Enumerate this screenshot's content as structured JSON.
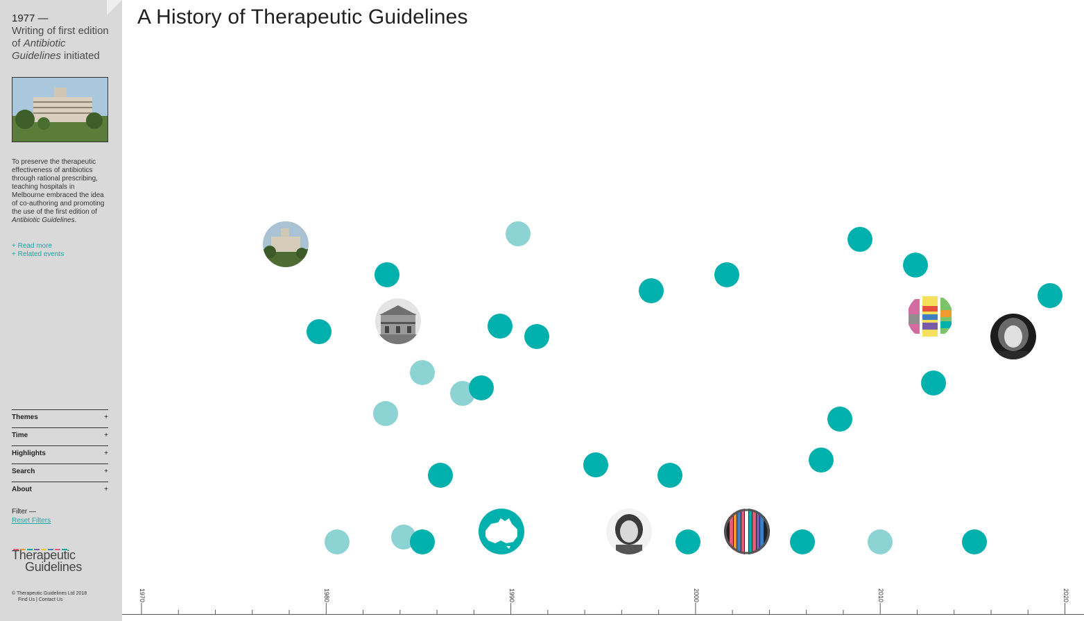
{
  "sidebar": {
    "event": {
      "year": "1977 —",
      "title_pre": "Writing of first edition of ",
      "title_em": "Antibiotic Guidelines",
      "title_post": " initiated",
      "description_pre": "To preserve the therapeutic effectiveness of antibiotics through rational prescribing, teaching hospitals in Melbourne embraced the idea of co-authoring and promoting the use of the first edition of ",
      "description_em": "Antibiotic Guidelines",
      "description_post": ".",
      "read_more": "+ Read more",
      "related_events": "+ Related events"
    },
    "menu": [
      {
        "label": "Themes",
        "icon": "+"
      },
      {
        "label": "Time",
        "icon": "+"
      },
      {
        "label": "Highlights",
        "icon": "+"
      },
      {
        "label": "Search",
        "icon": "+"
      },
      {
        "label": "About",
        "icon": "+"
      }
    ],
    "filter_label": "Filter —",
    "reset_filters": "Reset Filters",
    "logo": {
      "line1": "Therapeutic",
      "line2": "Guidelines"
    },
    "footer": {
      "copyright": "© Therapeutic Guidelines Ltd 2018",
      "links": "Find Us | Contact Us"
    }
  },
  "title": "A History of Therapeutic Guidelines",
  "timeline": {
    "axis_labels": [
      "1970",
      "1980",
      "1990",
      "2000",
      "2010",
      "2020"
    ],
    "colors": {
      "teal": "#00b0ad",
      "light": "#8dd3d3",
      "axis": "#555555"
    },
    "events": [
      {
        "year": 1979.6,
        "level": 0.53,
        "kind": "teal"
      },
      {
        "year": 1980.6,
        "level": 0.12,
        "kind": "light"
      },
      {
        "year": 1983.2,
        "level": 0.37,
        "kind": "light"
      },
      {
        "year": 1983.3,
        "level": 0.64,
        "kind": "teal"
      },
      {
        "year": 1984.2,
        "level": 0.13,
        "kind": "light"
      },
      {
        "year": 1985.2,
        "level": 0.45,
        "kind": "light"
      },
      {
        "year": 1985.2,
        "level": 0.12,
        "kind": "teal"
      },
      {
        "year": 1986.2,
        "level": 0.25,
        "kind": "teal"
      },
      {
        "year": 1987.4,
        "level": 0.41,
        "kind": "light"
      },
      {
        "year": 1988.4,
        "level": 0.42,
        "kind": "teal"
      },
      {
        "year": 1989.4,
        "level": 0.54,
        "kind": "teal"
      },
      {
        "year": 1990.4,
        "level": 0.72,
        "kind": "light"
      },
      {
        "year": 1991.4,
        "level": 0.52,
        "kind": "teal"
      },
      {
        "year": 1994.6,
        "level": 0.27,
        "kind": "teal"
      },
      {
        "year": 1997.6,
        "level": 0.61,
        "kind": "teal"
      },
      {
        "year": 1998.6,
        "level": 0.25,
        "kind": "teal"
      },
      {
        "year": 1999.6,
        "level": 0.12,
        "kind": "teal"
      },
      {
        "year": 2001.7,
        "level": 0.64,
        "kind": "teal"
      },
      {
        "year": 2005.8,
        "level": 0.12,
        "kind": "teal"
      },
      {
        "year": 2006.8,
        "level": 0.28,
        "kind": "teal"
      },
      {
        "year": 2007.8,
        "level": 0.36,
        "kind": "teal"
      },
      {
        "year": 2008.9,
        "level": 0.71,
        "kind": "teal"
      },
      {
        "year": 2010.0,
        "level": 0.12,
        "kind": "light"
      },
      {
        "year": 2011.9,
        "level": 0.66,
        "kind": "teal"
      },
      {
        "year": 2012.9,
        "level": 0.43,
        "kind": "teal"
      },
      {
        "year": 2015.1,
        "level": 0.12,
        "kind": "teal"
      },
      {
        "year": 2019.2,
        "level": 0.6,
        "kind": "teal"
      }
    ],
    "photos": [
      {
        "year": 1977.8,
        "level": 0.7,
        "icon": "hospital-building-photo"
      },
      {
        "year": 1983.9,
        "level": 0.55,
        "icon": "heritage-house-photo"
      },
      {
        "year": 1989.5,
        "level": 0.14,
        "icon": "australia-map-icon"
      },
      {
        "year": 1996.4,
        "level": 0.14,
        "icon": "woman-portrait-photo"
      },
      {
        "year": 2002.8,
        "level": 0.14,
        "icon": "striped-book-spines-photo"
      },
      {
        "year": 2012.7,
        "level": 0.56,
        "icon": "colorful-books-photo"
      },
      {
        "year": 2017.2,
        "level": 0.52,
        "icon": "woman-portrait-photo-2"
      }
    ]
  }
}
